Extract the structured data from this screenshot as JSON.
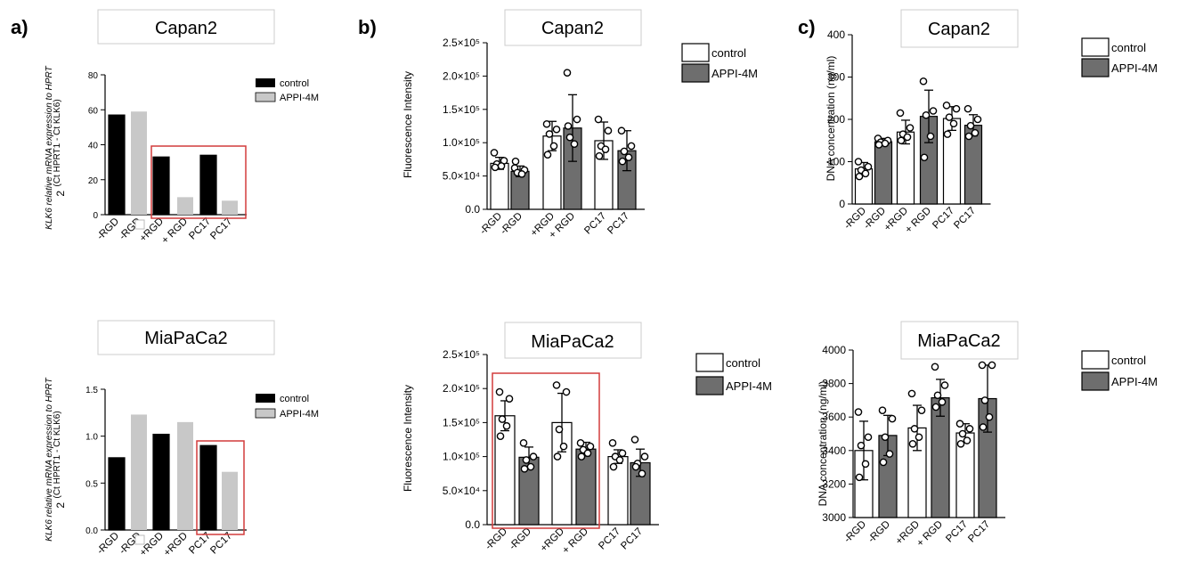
{
  "colors": {
    "control_solid": "#000000",
    "appi_light": "#c8c8c8",
    "control_open": "#ffffff",
    "appi_dark": "#6e6e6e",
    "highlight": "#d23c3c",
    "title_border": "#cccccc"
  },
  "panel_letters": {
    "a": "a)",
    "b": "b)",
    "c": "c)"
  },
  "chart_data": [
    {
      "id": "a-top",
      "type": "bar",
      "title": "Capan2",
      "categories": [
        "-RGD",
        "-RGD",
        "+RGD",
        "+ RGD",
        "PC17",
        "PC17"
      ],
      "groups": [
        "control",
        "APPI-4M",
        "control",
        "APPI-4M",
        "control",
        "APPI-4M"
      ],
      "values": [
        57,
        59,
        33,
        10,
        34,
        8
      ],
      "ylim": [
        0,
        80
      ],
      "yticks": [
        "0",
        "20",
        "40",
        "60",
        "80"
      ],
      "ylabel_line1": "KLK6 relative mRNA expression to HPRT",
      "ylabel_line2": "2",
      "ylabel_super": "(Ct HPRT1 - Ct KLK6)",
      "legend": [
        "control",
        "APPI-4M"
      ],
      "highlight_from": 2,
      "highlight_to": 5
    },
    {
      "id": "a-bottom",
      "type": "bar",
      "title": "MiaPaCa2",
      "categories": [
        "-RGD",
        "-RGD",
        "+RGD",
        "+RGD",
        "PC17",
        "PC17"
      ],
      "groups": [
        "control",
        "APPI-4M",
        "control",
        "APPI-4M",
        "control",
        "APPI-4M"
      ],
      "values": [
        0.77,
        1.23,
        1.02,
        1.15,
        0.9,
        0.62
      ],
      "ylim": [
        0,
        1.5
      ],
      "yticks": [
        "0.0",
        "0.5",
        "1.0",
        "1.5"
      ],
      "ylabel_line1": "KLK6 relative mRNA expression to HPRT",
      "ylabel_line2": "2",
      "ylabel_super": "(Ct HPRT1 - Ct KLK6)",
      "legend": [
        "control",
        "APPI-4M"
      ],
      "highlight_from": 4,
      "highlight_to": 5
    },
    {
      "id": "b-top",
      "type": "bar",
      "title": "Capan2",
      "categories": [
        "-RGD",
        "-RGD",
        "+RGD",
        "+ RGD",
        "PC17",
        "PC17"
      ],
      "groups": [
        "control",
        "APPI-4M",
        "control",
        "APPI-4M",
        "control",
        "APPI-4M"
      ],
      "values": [
        69000,
        57000,
        110000,
        122000,
        103000,
        88000
      ],
      "errors": [
        9000,
        8000,
        22000,
        50000,
        28000,
        30000
      ],
      "points": [
        [
          85000,
          73000,
          68000,
          65000,
          63000
        ],
        [
          62000,
          59000,
          55000,
          53000,
          72000
        ],
        [
          128000,
          120000,
          113000,
          95000,
          82000
        ],
        [
          205000,
          135000,
          108000,
          98000,
          125000
        ],
        [
          135000,
          118000,
          95000,
          90000,
          80000
        ],
        [
          118000,
          95000,
          87000,
          78000,
          72000
        ]
      ],
      "ylim": [
        0,
        250000
      ],
      "yticks": [
        "0.0",
        "5.0×10⁴",
        "1.0×10⁵",
        "1.5×10⁵",
        "2.0×10⁵",
        "2.5×10⁵"
      ],
      "ylabel": "Fluorescence Intensity",
      "legend": [
        "control",
        "APPI-4M"
      ]
    },
    {
      "id": "b-bottom",
      "type": "bar",
      "title": "MiaPaCa2",
      "categories": [
        "-RGD",
        "-RGD",
        "+RGD",
        "+ RGD",
        "PC17",
        "PC17"
      ],
      "groups": [
        "control",
        "APPI-4M",
        "control",
        "APPI-4M",
        "control",
        "APPI-4M"
      ],
      "values": [
        160000,
        99000,
        150000,
        111000,
        100000,
        91000
      ],
      "errors": [
        22000,
        15000,
        43000,
        10000,
        10000,
        20000
      ],
      "points": [
        [
          195000,
          185000,
          155000,
          145000,
          130000
        ],
        [
          120000,
          100000,
          95000,
          85000,
          82000
        ],
        [
          205000,
          195000,
          140000,
          115000,
          100000
        ],
        [
          120000,
          115000,
          110000,
          105000,
          100000
        ],
        [
          120000,
          105000,
          100000,
          95000,
          85000
        ],
        [
          125000,
          100000,
          90000,
          75000,
          85000
        ]
      ],
      "ylim": [
        0,
        250000
      ],
      "yticks": [
        "0.0",
        "5.0×10⁴",
        "1.0×10⁵",
        "1.5×10⁵",
        "2.0×10⁵",
        "2.5×10⁵"
      ],
      "ylabel": "Fluorescence Intensity",
      "legend": [
        "control",
        "APPI-4M"
      ],
      "highlight_from": 0,
      "highlight_to": 3
    },
    {
      "id": "c-top",
      "type": "bar",
      "title": "Capan2",
      "categories": [
        "-RGD",
        "-RGD",
        "+RGD",
        "+ RGD",
        "PC17",
        "PC17"
      ],
      "groups": [
        "control",
        "APPI-4M",
        "control",
        "APPI-4M",
        "control",
        "APPI-4M"
      ],
      "values": [
        83,
        147,
        170,
        207,
        202,
        186
      ],
      "errors": [
        15,
        8,
        28,
        62,
        28,
        25
      ],
      "points": [
        [
          100,
          88,
          80,
          72,
          65
        ],
        [
          155,
          150,
          146,
          143,
          140
        ],
        [
          215,
          180,
          165,
          158,
          150
        ],
        [
          290,
          220,
          210,
          160,
          110
        ],
        [
          233,
          225,
          205,
          190,
          165
        ],
        [
          225,
          200,
          185,
          168,
          160
        ]
      ],
      "ylim": [
        0,
        400
      ],
      "yticks": [
        "0",
        "100",
        "200",
        "300",
        "400"
      ],
      "ylabel": "DNA concentration (ng/ml)",
      "legend": [
        "control",
        "APPI-4M"
      ]
    },
    {
      "id": "c-bottom",
      "type": "bar",
      "title": "MiaPaCa2",
      "categories": [
        "-RGD",
        "-RGD",
        "+RGD",
        "+ RGD",
        "PC17",
        "PC17"
      ],
      "groups": [
        "control",
        "APPI-4M",
        "control",
        "APPI-4M",
        "control",
        "APPI-4M"
      ],
      "values": [
        3400,
        3490,
        3535,
        3715,
        3505,
        3710
      ],
      "errors": [
        175,
        120,
        135,
        110,
        55,
        200
      ],
      "points": [
        [
          3630,
          3480,
          3430,
          3320,
          3240
        ],
        [
          3640,
          3590,
          3480,
          3380,
          3330
        ],
        [
          3740,
          3640,
          3530,
          3480,
          3440
        ],
        [
          3900,
          3790,
          3730,
          3690,
          3660
        ],
        [
          3560,
          3530,
          3500,
          3460,
          3440
        ],
        [
          3910,
          3910,
          3700,
          3600,
          3540
        ]
      ],
      "ylim": [
        3000,
        4000
      ],
      "yticks": [
        "3000",
        "3200",
        "3400",
        "3600",
        "3800",
        "4000"
      ],
      "ylabel": "DNA concentration (ng/ml)",
      "legend": [
        "control",
        "APPI-4M"
      ]
    }
  ]
}
